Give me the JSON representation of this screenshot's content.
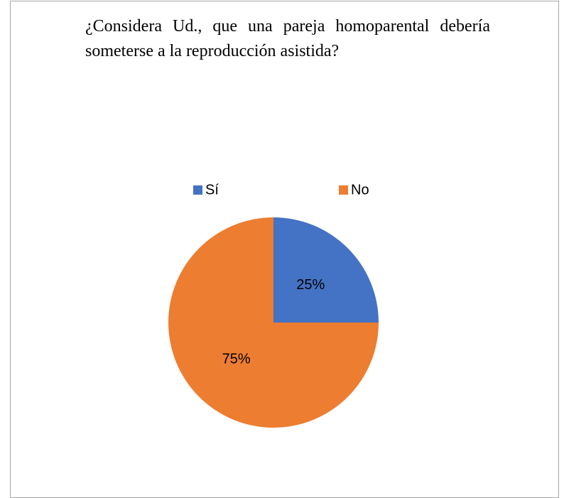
{
  "chart_data": {
    "type": "pie",
    "title": "¿Considera Ud., que una pareja homoparental debería someterse a la reproducción asistida?",
    "categories": [
      "Sí",
      "No"
    ],
    "values": [
      25,
      75
    ],
    "value_labels": [
      "25%",
      "75%"
    ],
    "colors": [
      "#4472c4",
      "#ed7d31"
    ],
    "legend": "top"
  }
}
